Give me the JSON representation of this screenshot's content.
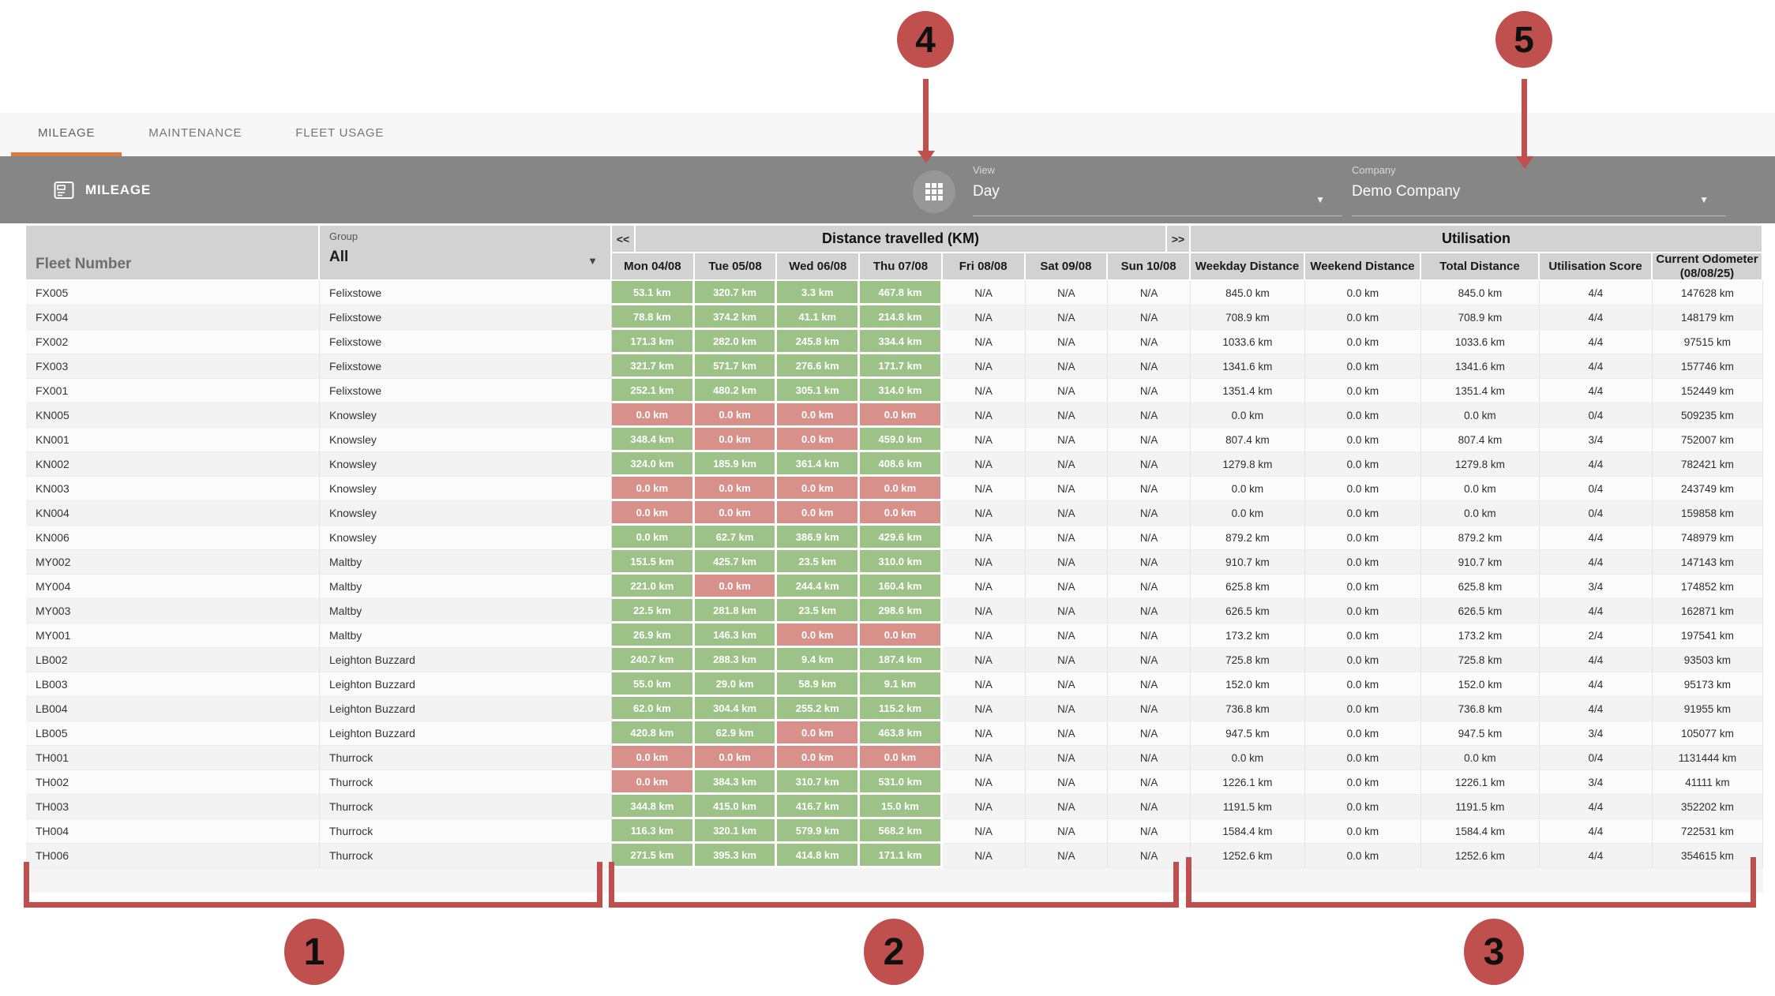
{
  "tabs": [
    {
      "label": "MILEAGE",
      "active": true
    },
    {
      "label": "MAINTENANCE",
      "active": false
    },
    {
      "label": "FLEET USAGE",
      "active": false
    }
  ],
  "toolbar": {
    "title": "MILEAGE",
    "view_label": "View",
    "view_value": "Day",
    "company_label": "Company",
    "company_value": "Demo Company",
    "caret": "▼"
  },
  "table": {
    "fleet_number_header": "Fleet Number",
    "group_label": "Group",
    "group_value": "All",
    "prev_label": "<<",
    "next_label": ">>",
    "distance_group_header": "Distance travelled (KM)",
    "utilisation_group_header": "Utilisation",
    "day_columns": [
      "Mon 04/08",
      "Tue 05/08",
      "Wed 06/08",
      "Thu 07/08",
      "Fri 08/08",
      "Sat 09/08",
      "Sun 10/08"
    ],
    "util_columns": [
      "Weekday Distance",
      "Weekend Distance",
      "Total Distance",
      "Utilisation Score",
      "Current Odometer (08/08/25)"
    ],
    "rows": [
      [
        "FX005",
        "Felixstowe",
        "53.1 km|g",
        "320.7 km|g",
        "3.3 km|g",
        "467.8 km|g",
        "N/A",
        "N/A",
        "N/A",
        "845.0 km",
        "0.0 km",
        "845.0 km",
        "4/4",
        "147628 km"
      ],
      [
        "FX004",
        "Felixstowe",
        "78.8 km|g",
        "374.2 km|g",
        "41.1 km|g",
        "214.8 km|g",
        "N/A",
        "N/A",
        "N/A",
        "708.9 km",
        "0.0 km",
        "708.9 km",
        "4/4",
        "148179 km"
      ],
      [
        "FX002",
        "Felixstowe",
        "171.3 km|g",
        "282.0 km|g",
        "245.8 km|g",
        "334.4 km|g",
        "N/A",
        "N/A",
        "N/A",
        "1033.6 km",
        "0.0 km",
        "1033.6 km",
        "4/4",
        "97515 km"
      ],
      [
        "FX003",
        "Felixstowe",
        "321.7 km|g",
        "571.7 km|g",
        "276.6 km|g",
        "171.7 km|g",
        "N/A",
        "N/A",
        "N/A",
        "1341.6 km",
        "0.0 km",
        "1341.6 km",
        "4/4",
        "157746 km"
      ],
      [
        "FX001",
        "Felixstowe",
        "252.1 km|g",
        "480.2 km|g",
        "305.1 km|g",
        "314.0 km|g",
        "N/A",
        "N/A",
        "N/A",
        "1351.4 km",
        "0.0 km",
        "1351.4 km",
        "4/4",
        "152449 km"
      ],
      [
        "KN005",
        "Knowsley",
        "0.0 km|r",
        "0.0 km|r",
        "0.0 km|r",
        "0.0 km|r",
        "N/A",
        "N/A",
        "N/A",
        "0.0 km",
        "0.0 km",
        "0.0 km",
        "0/4",
        "509235 km"
      ],
      [
        "KN001",
        "Knowsley",
        "348.4 km|g",
        "0.0 km|r",
        "0.0 km|r",
        "459.0 km|g",
        "N/A",
        "N/A",
        "N/A",
        "807.4 km",
        "0.0 km",
        "807.4 km",
        "3/4",
        "752007 km"
      ],
      [
        "KN002",
        "Knowsley",
        "324.0 km|g",
        "185.9 km|g",
        "361.4 km|g",
        "408.6 km|g",
        "N/A",
        "N/A",
        "N/A",
        "1279.8 km",
        "0.0 km",
        "1279.8 km",
        "4/4",
        "782421 km"
      ],
      [
        "KN003",
        "Knowsley",
        "0.0 km|r",
        "0.0 km|r",
        "0.0 km|r",
        "0.0 km|r",
        "N/A",
        "N/A",
        "N/A",
        "0.0 km",
        "0.0 km",
        "0.0 km",
        "0/4",
        "243749 km"
      ],
      [
        "KN004",
        "Knowsley",
        "0.0 km|r",
        "0.0 km|r",
        "0.0 km|r",
        "0.0 km|r",
        "N/A",
        "N/A",
        "N/A",
        "0.0 km",
        "0.0 km",
        "0.0 km",
        "0/4",
        "159858 km"
      ],
      [
        "KN006",
        "Knowsley",
        "0.0 km|g",
        "62.7 km|g",
        "386.9 km|g",
        "429.6 km|g",
        "N/A",
        "N/A",
        "N/A",
        "879.2 km",
        "0.0 km",
        "879.2 km",
        "4/4",
        "748979 km"
      ],
      [
        "MY002",
        "Maltby",
        "151.5 km|g",
        "425.7 km|g",
        "23.5 km|g",
        "310.0 km|g",
        "N/A",
        "N/A",
        "N/A",
        "910.7 km",
        "0.0 km",
        "910.7 km",
        "4/4",
        "147143 km"
      ],
      [
        "MY004",
        "Maltby",
        "221.0 km|g",
        "0.0 km|r",
        "244.4 km|g",
        "160.4 km|g",
        "N/A",
        "N/A",
        "N/A",
        "625.8 km",
        "0.0 km",
        "625.8 km",
        "3/4",
        "174852 km"
      ],
      [
        "MY003",
        "Maltby",
        "22.5 km|g",
        "281.8 km|g",
        "23.5 km|g",
        "298.6 km|g",
        "N/A",
        "N/A",
        "N/A",
        "626.5 km",
        "0.0 km",
        "626.5 km",
        "4/4",
        "162871 km"
      ],
      [
        "MY001",
        "Maltby",
        "26.9 km|g",
        "146.3 km|g",
        "0.0 km|r",
        "0.0 km|r",
        "N/A",
        "N/A",
        "N/A",
        "173.2 km",
        "0.0 km",
        "173.2 km",
        "2/4",
        "197541 km"
      ],
      [
        "LB002",
        "Leighton Buzzard",
        "240.7 km|g",
        "288.3 km|g",
        "9.4 km|g",
        "187.4 km|g",
        "N/A",
        "N/A",
        "N/A",
        "725.8 km",
        "0.0 km",
        "725.8 km",
        "4/4",
        "93503 km"
      ],
      [
        "LB003",
        "Leighton Buzzard",
        "55.0 km|g",
        "29.0 km|g",
        "58.9 km|g",
        "9.1 km|g",
        "N/A",
        "N/A",
        "N/A",
        "152.0 km",
        "0.0 km",
        "152.0 km",
        "4/4",
        "95173 km"
      ],
      [
        "LB004",
        "Leighton Buzzard",
        "62.0 km|g",
        "304.4 km|g",
        "255.2 km|g",
        "115.2 km|g",
        "N/A",
        "N/A",
        "N/A",
        "736.8 km",
        "0.0 km",
        "736.8 km",
        "4/4",
        "91955 km"
      ],
      [
        "LB005",
        "Leighton Buzzard",
        "420.8 km|g",
        "62.9 km|g",
        "0.0 km|r",
        "463.8 km|g",
        "N/A",
        "N/A",
        "N/A",
        "947.5 km",
        "0.0 km",
        "947.5 km",
        "3/4",
        "105077 km"
      ],
      [
        "TH001",
        "Thurrock",
        "0.0 km|r",
        "0.0 km|r",
        "0.0 km|r",
        "0.0 km|r",
        "N/A",
        "N/A",
        "N/A",
        "0.0 km",
        "0.0 km",
        "0.0 km",
        "0/4",
        "1131444 km"
      ],
      [
        "TH002",
        "Thurrock",
        "0.0 km|r",
        "384.3 km|g",
        "310.7 km|g",
        "531.0 km|g",
        "N/A",
        "N/A",
        "N/A",
        "1226.1 km",
        "0.0 km",
        "1226.1 km",
        "3/4",
        "41111 km"
      ],
      [
        "TH003",
        "Thurrock",
        "344.8 km|g",
        "415.0 km|g",
        "416.7 km|g",
        "15.0 km|g",
        "N/A",
        "N/A",
        "N/A",
        "1191.5 km",
        "0.0 km",
        "1191.5 km",
        "4/4",
        "352202 km"
      ],
      [
        "TH004",
        "Thurrock",
        "116.3 km|g",
        "320.1 km|g",
        "579.9 km|g",
        "568.2 km|g",
        "N/A",
        "N/A",
        "N/A",
        "1584.4 km",
        "0.0 km",
        "1584.4 km",
        "4/4",
        "722531 km"
      ],
      [
        "TH006",
        "Thurrock",
        "271.5 km|g",
        "395.3 km|g",
        "414.8 km|g",
        "171.1 km|g",
        "N/A",
        "N/A",
        "N/A",
        "1252.6 km",
        "0.0 km",
        "1252.6 km",
        "4/4",
        "354615 km"
      ]
    ]
  },
  "annotations": {
    "markers": [
      {
        "n": "1"
      },
      {
        "n": "2"
      },
      {
        "n": "3"
      },
      {
        "n": "4"
      },
      {
        "n": "5"
      }
    ]
  },
  "colors": {
    "accent_orange": "#df7a3e",
    "annotation_red": "#c0504d",
    "cell_green": "#9cc287",
    "cell_red": "#d8918a",
    "toolbar_gray": "#868686",
    "header_gray": "#d2d2d2"
  }
}
